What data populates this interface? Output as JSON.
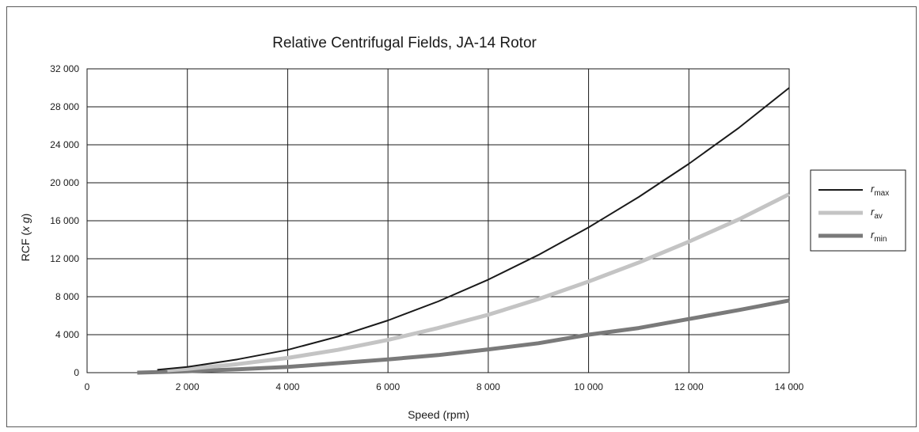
{
  "chart_data": {
    "type": "line",
    "title": "Relative Centrifugal Fields, JA-14 Rotor",
    "xlabel": "Speed (rpm)",
    "ylabel": {
      "prefix": "RCF (",
      "x": "x",
      "g": "g",
      "suffix": ")"
    },
    "xlim": [
      0,
      14000
    ],
    "ylim": [
      0,
      32000
    ],
    "grid": true,
    "legend_position": "right",
    "x_ticks": [
      {
        "value": 0,
        "label": "0"
      },
      {
        "value": 2000,
        "label": "2 000"
      },
      {
        "value": 4000,
        "label": "4 000"
      },
      {
        "value": 6000,
        "label": "6 000"
      },
      {
        "value": 8000,
        "label": "8 000"
      },
      {
        "value": 10000,
        "label": "10 000"
      },
      {
        "value": 12000,
        "label": "12 000"
      },
      {
        "value": 14000,
        "label": "14 000"
      }
    ],
    "y_ticks": [
      {
        "value": 0,
        "label": "0"
      },
      {
        "value": 4000,
        "label": "4 000"
      },
      {
        "value": 8000,
        "label": "8 000"
      },
      {
        "value": 12000,
        "label": "12 000"
      },
      {
        "value": 16000,
        "label": "16 000"
      },
      {
        "value": 20000,
        "label": "20 000"
      },
      {
        "value": 24000,
        "label": "24 000"
      },
      {
        "value": 28000,
        "label": "28 000"
      },
      {
        "value": 32000,
        "label": "32 000"
      }
    ],
    "series": [
      {
        "name": "max",
        "label_r": "r",
        "label_sub": "max",
        "color": "#1a1a1a",
        "x": [
          1400,
          2000,
          3000,
          4000,
          5000,
          6000,
          7000,
          8000,
          9000,
          10000,
          11000,
          12000,
          13000,
          14000
        ],
        "y": [
          300,
          600,
          1400,
          2400,
          3800,
          5500,
          7500,
          9800,
          12400,
          15300,
          18500,
          22000,
          25800,
          30000
        ]
      },
      {
        "name": "av",
        "label_r": "r",
        "label_sub": "av",
        "color": "#c4c4c4",
        "x": [
          1600,
          2000,
          3000,
          4000,
          5000,
          6000,
          7000,
          8000,
          9000,
          10000,
          11000,
          12000,
          13000,
          14000
        ],
        "y": [
          250,
          400,
          900,
          1550,
          2400,
          3450,
          4700,
          6100,
          7750,
          9600,
          11600,
          13800,
          16150,
          18800
        ]
      },
      {
        "name": "min",
        "label_r": "r",
        "label_sub": "min",
        "color": "#7a7a7a",
        "x": [
          1000,
          2000,
          3000,
          4000,
          5000,
          6000,
          7000,
          8000,
          9000,
          10000,
          11000,
          12000,
          13000,
          14000
        ],
        "y": [
          0,
          150,
          350,
          600,
          1000,
          1400,
          1850,
          2450,
          3100,
          4000,
          4700,
          5650,
          6600,
          7600
        ]
      }
    ]
  }
}
